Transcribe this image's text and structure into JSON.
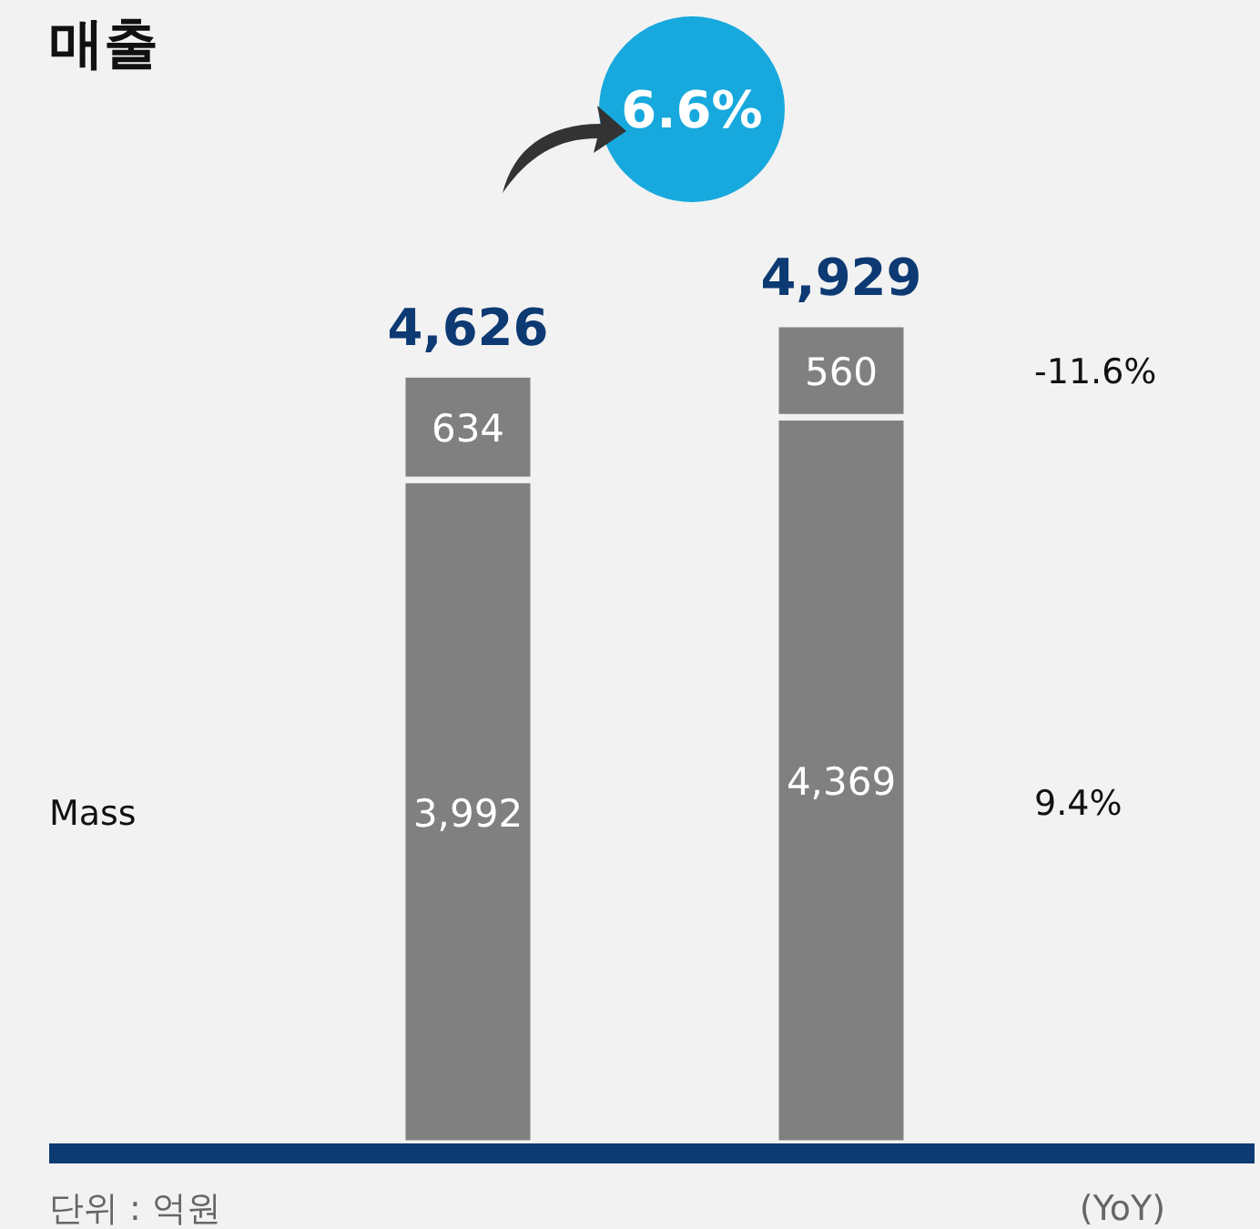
{
  "chart_data": {
    "type": "bar",
    "stacked": true,
    "title": "매출",
    "categories": [
      null,
      null
    ],
    "series": [
      {
        "name": "Mass",
        "color": "#808080",
        "values": [
          3992,
          4369
        ],
        "value_labels": [
          "3,992",
          "4,369"
        ]
      },
      {
        "color": "#808080",
        "values": [
          634,
          560
        ],
        "value_labels": [
          "634",
          "560"
        ]
      }
    ],
    "totals": [
      "4,626",
      "4,929"
    ],
    "annotations": [
      "6.6%",
      "-11.6%",
      "9.4%",
      "(YoY)",
      "단위 : 억원"
    ]
  }
}
